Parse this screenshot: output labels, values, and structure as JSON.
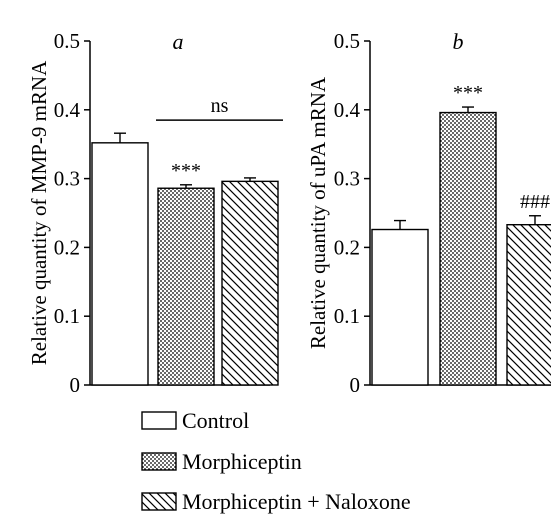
{
  "legend": {
    "control": "Control",
    "morphiceptin": "Morphiceptin",
    "combo": "Morphiceptin + Naloxone"
  },
  "chart_data": [
    {
      "type": "bar",
      "panel_label": "a",
      "ylabel": "Relative quantity of MMP-9 mRNA",
      "ylim": [
        0,
        0.5
      ],
      "yticks": [
        0,
        0.1,
        0.2,
        0.3,
        0.4,
        0.5
      ],
      "ytick_labels": [
        "0",
        "0.1",
        "0.2",
        "0.3",
        "0.4",
        "0.5"
      ],
      "categories": [
        "Control",
        "Morphiceptin",
        "Morphiceptin + Naloxone"
      ],
      "values": [
        0.352,
        0.286,
        0.296
      ],
      "errors": [
        0.014,
        0.005,
        0.005
      ],
      "patterns": [
        "none",
        "dots",
        "hatch"
      ],
      "annotations": [
        "",
        "***",
        ""
      ],
      "bracket": {
        "from": 1,
        "to": 2,
        "y": 0.385,
        "label": "ns"
      }
    },
    {
      "type": "bar",
      "panel_label": "b",
      "ylabel": "Relative quantity of uPA mRNA",
      "ylim": [
        0,
        0.5
      ],
      "yticks": [
        0,
        0.1,
        0.2,
        0.3,
        0.4,
        0.5
      ],
      "ytick_labels": [
        "0",
        "0.1",
        "0.2",
        "0.3",
        "0.4",
        "0.5"
      ],
      "categories": [
        "Control",
        "Morphiceptin",
        "Morphiceptin + Naloxone"
      ],
      "values": [
        0.226,
        0.396,
        0.233
      ],
      "errors": [
        0.013,
        0.008,
        0.013
      ],
      "patterns": [
        "none",
        "dots",
        "hatch"
      ],
      "annotations": [
        "",
        "***",
        "###"
      ]
    }
  ]
}
